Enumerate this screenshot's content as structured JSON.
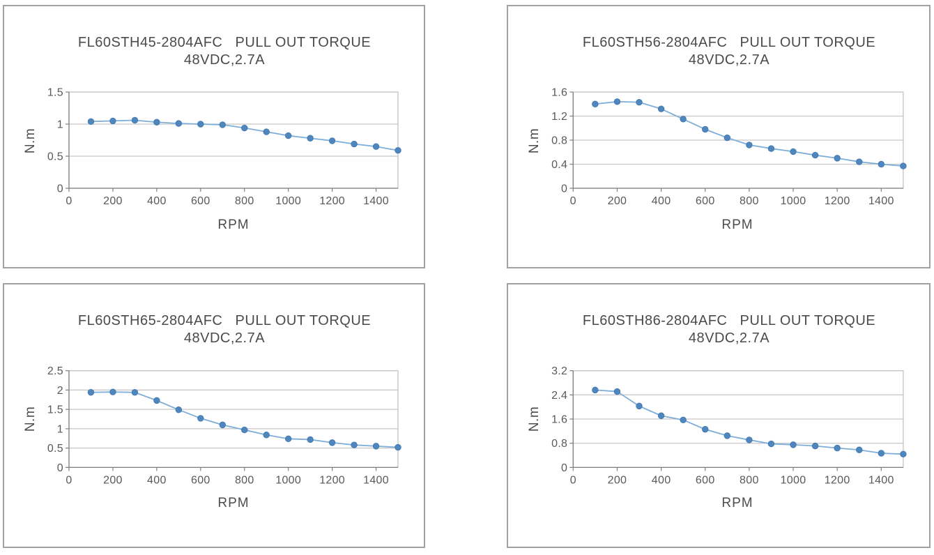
{
  "page": {
    "background": "#ffffff",
    "description": "Four stepper-motor pull-out torque curves"
  },
  "colors": {
    "marker": "#4f86bd",
    "marker_edge": "#3f76ad",
    "line": "#7eaeda",
    "grid": "#c6c6c6",
    "plot_border": "#bfbfbf",
    "axis": "#7f7f7f",
    "tick_text": "#595959",
    "title_text": "#4a4a4a",
    "panel_border": "#a1a1a5"
  },
  "chart_data": [
    {
      "type": "line",
      "title": "FL60STH45-2804AFC   PULL OUT TORQUE",
      "subtitle": "48VDC,2.7A",
      "xlabel": "RPM",
      "ylabel": "N.m",
      "x": [
        100,
        200,
        300,
        400,
        500,
        600,
        700,
        800,
        900,
        1000,
        1100,
        1200,
        1300,
        1400,
        1500
      ],
      "values": [
        1.04,
        1.05,
        1.06,
        1.03,
        1.01,
        1.0,
        0.99,
        0.94,
        0.88,
        0.82,
        0.78,
        0.74,
        0.69,
        0.65,
        0.59
      ],
      "xlim": [
        0,
        1500
      ],
      "ylim": [
        0,
        1.5
      ],
      "xtick_values": [
        0,
        200,
        400,
        600,
        800,
        1000,
        1200,
        1400
      ],
      "xtick_labels": [
        "0",
        "200",
        "400",
        "600",
        "800",
        "1000",
        "1200",
        "1400"
      ],
      "ytick_values": [
        0,
        0.5,
        1,
        1.5
      ],
      "ytick_labels": [
        "0",
        "0.5",
        "1",
        "1.5"
      ],
      "grid": "horizontal",
      "legend": "none"
    },
    {
      "type": "line",
      "title": "FL60STH56-2804AFC   PULL OUT TORQUE",
      "subtitle": "48VDC,2.7A",
      "xlabel": "RPM",
      "ylabel": "N.m",
      "x": [
        100,
        200,
        300,
        400,
        500,
        600,
        700,
        800,
        900,
        1000,
        1100,
        1200,
        1300,
        1400,
        1500
      ],
      "values": [
        1.4,
        1.44,
        1.43,
        1.32,
        1.15,
        0.98,
        0.84,
        0.72,
        0.66,
        0.61,
        0.55,
        0.5,
        0.44,
        0.4,
        0.37
      ],
      "xlim": [
        0,
        1500
      ],
      "ylim": [
        0,
        1.6
      ],
      "xtick_values": [
        0,
        200,
        400,
        600,
        800,
        1000,
        1200,
        1400
      ],
      "xtick_labels": [
        "0",
        "200",
        "400",
        "600",
        "800",
        "1000",
        "1200",
        "1400"
      ],
      "ytick_values": [
        0,
        0.4,
        0.8,
        1.2,
        1.6
      ],
      "ytick_labels": [
        "0",
        "0.4",
        "0.8",
        "1.2",
        "1.6"
      ],
      "grid": "horizontal",
      "legend": "none"
    },
    {
      "type": "line",
      "title": "FL60STH65-2804AFC   PULL OUT TORQUE",
      "subtitle": "48VDC,2.7A",
      "xlabel": "RPM",
      "ylabel": "N.m",
      "x": [
        100,
        200,
        300,
        400,
        500,
        600,
        700,
        800,
        900,
        1000,
        1100,
        1200,
        1300,
        1400,
        1500
      ],
      "values": [
        1.94,
        1.95,
        1.94,
        1.73,
        1.49,
        1.27,
        1.1,
        0.97,
        0.84,
        0.74,
        0.72,
        0.64,
        0.58,
        0.55,
        0.52
      ],
      "xlim": [
        0,
        1500
      ],
      "ylim": [
        0,
        2.5
      ],
      "xtick_values": [
        0,
        200,
        400,
        600,
        800,
        1000,
        1200,
        1400
      ],
      "xtick_labels": [
        "0",
        "200",
        "400",
        "600",
        "800",
        "1000",
        "1200",
        "1400"
      ],
      "ytick_values": [
        0,
        0.5,
        1,
        1.5,
        2,
        2.5
      ],
      "ytick_labels": [
        "0",
        "0.5",
        "1",
        "1.5",
        "2",
        "2.5"
      ],
      "grid": "horizontal",
      "legend": "none"
    },
    {
      "type": "line",
      "title": "FL60STH86-2804AFC   PULL OUT TORQUE",
      "subtitle": "48VDC,2.7A",
      "xlabel": "RPM",
      "ylabel": "N.m",
      "x": [
        100,
        200,
        300,
        400,
        500,
        600,
        700,
        800,
        900,
        1000,
        1100,
        1200,
        1300,
        1400,
        1500
      ],
      "values": [
        2.56,
        2.51,
        2.03,
        1.71,
        1.57,
        1.26,
        1.05,
        0.91,
        0.78,
        0.75,
        0.71,
        0.64,
        0.58,
        0.47,
        0.44
      ],
      "xlim": [
        0,
        1500
      ],
      "ylim": [
        0,
        3.2
      ],
      "xtick_values": [
        0,
        200,
        400,
        600,
        800,
        1000,
        1200,
        1400
      ],
      "xtick_labels": [
        "0",
        "200",
        "400",
        "600",
        "800",
        "1000",
        "1200",
        "1400"
      ],
      "ytick_values": [
        0,
        0.8,
        1.6,
        2.4,
        3.2
      ],
      "ytick_labels": [
        "0",
        "0.8",
        "1.6",
        "2.4",
        "3.2"
      ],
      "grid": "horizontal",
      "legend": "none"
    }
  ]
}
